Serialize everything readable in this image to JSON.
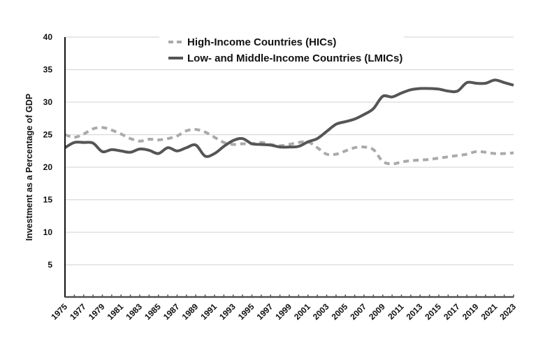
{
  "chart_data": {
    "type": "line",
    "title": "",
    "xlabel": "",
    "ylabel": "Investment as a Percentage of GDP",
    "ylim": [
      0,
      40
    ],
    "yticks": [
      5,
      10,
      15,
      20,
      25,
      30,
      35,
      40
    ],
    "grid": "horizontal",
    "legend": "top-center",
    "x": [
      1975,
      1976,
      1977,
      1978,
      1979,
      1980,
      1981,
      1982,
      1983,
      1984,
      1985,
      1986,
      1987,
      1988,
      1989,
      1990,
      1991,
      1992,
      1993,
      1994,
      1995,
      1996,
      1997,
      1998,
      1999,
      2000,
      2001,
      2002,
      2003,
      2004,
      2005,
      2006,
      2007,
      2008,
      2009,
      2010,
      2011,
      2012,
      2013,
      2014,
      2015,
      2016,
      2017,
      2018,
      2019,
      2020,
      2021,
      2022,
      2023
    ],
    "xtick_labels": [
      "1975",
      "1977",
      "1979",
      "1981",
      "1983",
      "1985",
      "1987",
      "1989",
      "1991",
      "1993",
      "1995",
      "1997",
      "1999",
      "2001",
      "2003",
      "2005",
      "2007",
      "2009",
      "2011",
      "2013",
      "2015",
      "2017",
      "2019",
      "2021",
      "2023"
    ],
    "series": [
      {
        "name": "High-Income Countries (HICs)",
        "color": "#aaaaaa",
        "style": "dashed",
        "values": [
          25.0,
          24.6,
          25.1,
          25.9,
          26.1,
          25.7,
          25.1,
          24.4,
          24.0,
          24.3,
          24.2,
          24.4,
          24.8,
          25.6,
          25.8,
          25.4,
          24.6,
          23.8,
          23.5,
          23.6,
          23.6,
          23.8,
          23.5,
          23.3,
          23.5,
          23.8,
          23.9,
          23.0,
          22.0,
          22.0,
          22.5,
          23.0,
          23.1,
          22.7,
          20.9,
          20.5,
          20.8,
          21.0,
          21.1,
          21.2,
          21.4,
          21.6,
          21.8,
          22.0,
          22.4,
          22.3,
          22.1,
          22.1,
          22.2
        ]
      },
      {
        "name": "Low- and Middle-Income Countries (LMICs)",
        "color": "#555555",
        "style": "solid",
        "values": [
          23.0,
          23.8,
          23.8,
          23.7,
          22.4,
          22.7,
          22.5,
          22.3,
          22.8,
          22.6,
          22.1,
          23.0,
          22.5,
          23.0,
          23.4,
          21.7,
          22.1,
          23.2,
          24.1,
          24.4,
          23.6,
          23.5,
          23.4,
          23.1,
          23.1,
          23.2,
          23.9,
          24.4,
          25.5,
          26.6,
          27.0,
          27.4,
          28.1,
          29.0,
          30.9,
          30.8,
          31.4,
          31.9,
          32.1,
          32.1,
          32.0,
          31.7,
          31.7,
          33.0,
          32.9,
          32.9,
          33.4,
          33.0,
          32.6
        ]
      }
    ]
  }
}
